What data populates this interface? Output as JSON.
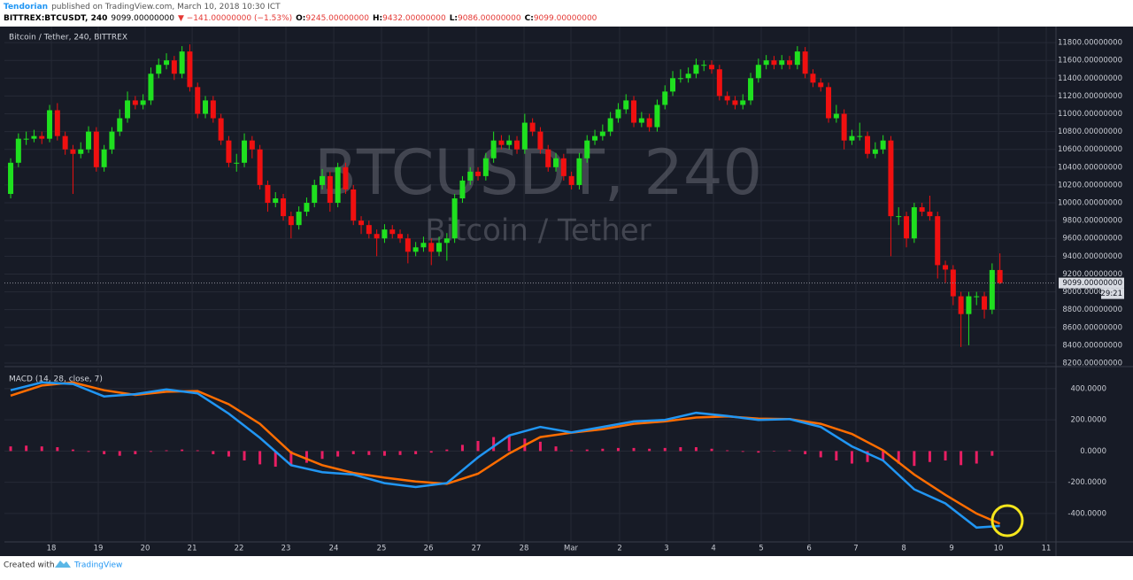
{
  "header": {
    "author": "Tendorian",
    "published": "published on TradingView.com, March 10, 2018 10:30 ICT",
    "symbol": "BITTREX:BTCUSDT, 240",
    "last": "9099.00000000",
    "change": "▼ −141.00000000 (−1.53%)",
    "o_label": "O:",
    "o": "9245.00000000",
    "h_label": "H:",
    "h": "9432.00000000",
    "l_label": "L:",
    "l": "9086.00000000",
    "c_label": "C:",
    "c": "9099.00000000"
  },
  "footer": {
    "created": "Created with",
    "brand": "TradingView"
  },
  "chart_data": [
    {
      "type": "candlestick",
      "title": "Bitcoin / Tether, 240, BITTREX",
      "watermark": "BTCUSDT, 240",
      "watermark_subtitle": "Bitcoin / Tether",
      "up_color": "#1fe01f",
      "down_color": "#f01010",
      "grid": true,
      "last_price_label": "9099.00000000",
      "countdown": "29:21",
      "xlim": [
        -0.8,
        134.2
      ],
      "xticks": [
        {
          "value": 5.23,
          "label": "18"
        },
        {
          "value": 11.25,
          "label": "19"
        },
        {
          "value": 17.27,
          "label": "20"
        },
        {
          "value": 23.3,
          "label": "21"
        },
        {
          "value": 29.32,
          "label": "22"
        },
        {
          "value": 35.34,
          "label": "23"
        },
        {
          "value": 41.48,
          "label": "24"
        },
        {
          "value": 47.61,
          "label": "25"
        },
        {
          "value": 53.64,
          "label": "26"
        },
        {
          "value": 59.77,
          "label": "27"
        },
        {
          "value": 65.91,
          "label": "28"
        },
        {
          "value": 71.93,
          "label": "Mar"
        },
        {
          "value": 78.18,
          "label": "2"
        },
        {
          "value": 84.2,
          "label": "3"
        },
        {
          "value": 90.23,
          "label": "4"
        },
        {
          "value": 96.36,
          "label": "5"
        },
        {
          "value": 102.5,
          "label": "6"
        },
        {
          "value": 108.52,
          "label": "7"
        },
        {
          "value": 114.66,
          "label": "8"
        },
        {
          "value": 120.8,
          "label": "9"
        },
        {
          "value": 126.82,
          "label": "10"
        },
        {
          "value": 132.95,
          "label": "11"
        }
      ],
      "ylim": [
        8180,
        11960
      ],
      "yticks": [
        {
          "value": 8200,
          "label": "8200.00000000"
        },
        {
          "value": 8400,
          "label": "8400.00000000"
        },
        {
          "value": 8600,
          "label": "8600.00000000"
        },
        {
          "value": 8800,
          "label": "8800.00000000"
        },
        {
          "value": 9000,
          "label": "9000.00000000"
        },
        {
          "value": 9200,
          "label": "9200.00000000"
        },
        {
          "value": 9400,
          "label": "9400.00000000"
        },
        {
          "value": 9600,
          "label": "9600.00000000"
        },
        {
          "value": 9800,
          "label": "9800.00000000"
        },
        {
          "value": 10000,
          "label": "10000.00000000"
        },
        {
          "value": 10200,
          "label": "10200.00000000"
        },
        {
          "value": 10400,
          "label": "10400.00000000"
        },
        {
          "value": 10600,
          "label": "10600.00000000"
        },
        {
          "value": 10800,
          "label": "10800.00000000"
        },
        {
          "value": 11000,
          "label": "11000.00000000"
        },
        {
          "value": 11200,
          "label": "11200.00000000"
        },
        {
          "value": 11400,
          "label": "11400.00000000"
        },
        {
          "value": 11600,
          "label": "11600.00000000"
        },
        {
          "value": 11800,
          "label": "11800.00000000"
        }
      ],
      "candles": [
        [
          10100,
          10500,
          10050,
          10450
        ],
        [
          10450,
          10780,
          10400,
          10720
        ],
        [
          10720,
          10800,
          10650,
          10720
        ],
        [
          10720,
          10820,
          10680,
          10750
        ],
        [
          10750,
          10800,
          10660,
          10720
        ],
        [
          10720,
          11100,
          10680,
          11040
        ],
        [
          11040,
          11120,
          10700,
          10750
        ],
        [
          10750,
          10800,
          10540,
          10600
        ],
        [
          10600,
          10650,
          10100,
          10550
        ],
        [
          10550,
          10680,
          10500,
          10600
        ],
        [
          10600,
          10860,
          10560,
          10800
        ],
        [
          10800,
          10850,
          10350,
          10400
        ],
        [
          10400,
          10650,
          10350,
          10600
        ],
        [
          10600,
          10850,
          10550,
          10800
        ],
        [
          10800,
          11050,
          10750,
          10950
        ],
        [
          10950,
          11250,
          10900,
          11150
        ],
        [
          11150,
          11200,
          11050,
          11100
        ],
        [
          11100,
          11220,
          11050,
          11150
        ],
        [
          11150,
          11520,
          11100,
          11450
        ],
        [
          11450,
          11620,
          11400,
          11550
        ],
        [
          11550,
          11680,
          11500,
          11600
        ],
        [
          11600,
          11650,
          11380,
          11450
        ],
        [
          11450,
          11760,
          11400,
          11700
        ],
        [
          11700,
          11780,
          11250,
          11300
        ],
        [
          11300,
          11350,
          10950,
          11000
        ],
        [
          11000,
          11200,
          10950,
          11150
        ],
        [
          11150,
          11200,
          10900,
          10950
        ],
        [
          10950,
          11000,
          10650,
          10700
        ],
        [
          10700,
          10750,
          10400,
          10450
        ],
        [
          10450,
          10550,
          10350,
          10450
        ],
        [
          10450,
          10780,
          10400,
          10700
        ],
        [
          10700,
          10750,
          10500,
          10600
        ],
        [
          10600,
          10650,
          10150,
          10200
        ],
        [
          10200,
          10250,
          9900,
          10000
        ],
        [
          10000,
          10120,
          9950,
          10050
        ],
        [
          10050,
          10100,
          9800,
          9850
        ],
        [
          9850,
          9900,
          9600,
          9750
        ],
        [
          9750,
          9960,
          9700,
          9900
        ],
        [
          9900,
          10060,
          9850,
          10000
        ],
        [
          10000,
          10260,
          9950,
          10200
        ],
        [
          10200,
          10380,
          10150,
          10300
        ],
        [
          10300,
          10350,
          9900,
          10000
        ],
        [
          10000,
          10450,
          9950,
          10400
        ],
        [
          10400,
          10450,
          10100,
          10150
        ],
        [
          10150,
          10200,
          9750,
          9800
        ],
        [
          9800,
          9850,
          9650,
          9750
        ],
        [
          9750,
          9800,
          9600,
          9650
        ],
        [
          9650,
          9700,
          9400,
          9600
        ],
        [
          9600,
          9760,
          9550,
          9700
        ],
        [
          9700,
          9750,
          9600,
          9650
        ],
        [
          9650,
          9700,
          9550,
          9600
        ],
        [
          9600,
          9650,
          9320,
          9450
        ],
        [
          9450,
          9560,
          9400,
          9500
        ],
        [
          9500,
          9620,
          9450,
          9550
        ],
        [
          9550,
          9600,
          9300,
          9450
        ],
        [
          9450,
          9620,
          9400,
          9550
        ],
        [
          9550,
          9660,
          9350,
          9600
        ],
        [
          9600,
          10100,
          9550,
          10050
        ],
        [
          10050,
          10300,
          10000,
          10250
        ],
        [
          10250,
          10400,
          10200,
          10350
        ],
        [
          10350,
          10400,
          10250,
          10300
        ],
        [
          10300,
          10560,
          10250,
          10500
        ],
        [
          10500,
          10800,
          10450,
          10700
        ],
        [
          10700,
          10760,
          10600,
          10650
        ],
        [
          10650,
          10760,
          10600,
          10700
        ],
        [
          10700,
          10750,
          10550,
          10600
        ],
        [
          10600,
          11000,
          10550,
          10900
        ],
        [
          10900,
          10950,
          10750,
          10800
        ],
        [
          10800,
          10850,
          10550,
          10600
        ],
        [
          10600,
          10650,
          10350,
          10400
        ],
        [
          10400,
          10560,
          10350,
          10500
        ],
        [
          10500,
          10550,
          10250,
          10300
        ],
        [
          10300,
          10350,
          10150,
          10200
        ],
        [
          10200,
          10560,
          10150,
          10500
        ],
        [
          10500,
          10760,
          10450,
          10700
        ],
        [
          10700,
          10820,
          10650,
          10750
        ],
        [
          10750,
          10880,
          10700,
          10800
        ],
        [
          10800,
          11020,
          10750,
          10950
        ],
        [
          10950,
          11120,
          10900,
          11050
        ],
        [
          11050,
          11220,
          11000,
          11150
        ],
        [
          11150,
          11200,
          10850,
          10900
        ],
        [
          10900,
          11020,
          10850,
          10950
        ],
        [
          10950,
          11000,
          10800,
          10850
        ],
        [
          10850,
          11160,
          10800,
          11100
        ],
        [
          11100,
          11320,
          11050,
          11250
        ],
        [
          11250,
          11480,
          11200,
          11400
        ],
        [
          11400,
          11500,
          11350,
          11400
        ],
        [
          11400,
          11520,
          11350,
          11450
        ],
        [
          11450,
          11620,
          11400,
          11550
        ],
        [
          11550,
          11600,
          11480,
          11550
        ],
        [
          11550,
          11600,
          11450,
          11500
        ],
        [
          11500,
          11550,
          11150,
          11200
        ],
        [
          11200,
          11250,
          11100,
          11150
        ],
        [
          11150,
          11200,
          11050,
          11100
        ],
        [
          11100,
          11220,
          11050,
          11150
        ],
        [
          11150,
          11460,
          11100,
          11400
        ],
        [
          11400,
          11620,
          11350,
          11550
        ],
        [
          11550,
          11660,
          11500,
          11600
        ],
        [
          11600,
          11650,
          11500,
          11550
        ],
        [
          11550,
          11660,
          11500,
          11600
        ],
        [
          11600,
          11650,
          11500,
          11550
        ],
        [
          11550,
          11760,
          11500,
          11700
        ],
        [
          11700,
          11750,
          11400,
          11450
        ],
        [
          11450,
          11500,
          11300,
          11350
        ],
        [
          11350,
          11400,
          11250,
          11300
        ],
        [
          11300,
          11350,
          10900,
          10950
        ],
        [
          10950,
          11100,
          10900,
          11000
        ],
        [
          11000,
          11050,
          10600,
          10700
        ],
        [
          10700,
          10820,
          10650,
          10750
        ],
        [
          10750,
          10900,
          10700,
          10750
        ],
        [
          10750,
          10800,
          10500,
          10550
        ],
        [
          10550,
          10680,
          10500,
          10600
        ],
        [
          10600,
          10760,
          10550,
          10700
        ],
        [
          10700,
          10750,
          9400,
          9850
        ],
        [
          9850,
          9950,
          9750,
          9850
        ],
        [
          9850,
          9900,
          9500,
          9600
        ],
        [
          9600,
          10000,
          9550,
          9950
        ],
        [
          9950,
          10000,
          9850,
          9900
        ],
        [
          9900,
          10080,
          9800,
          9850
        ],
        [
          9850,
          9900,
          9150,
          9300
        ],
        [
          9300,
          9350,
          9100,
          9250
        ],
        [
          9250,
          9300,
          8850,
          8950
        ],
        [
          8950,
          9000,
          8380,
          8750
        ],
        [
          8750,
          9000,
          8400,
          8950
        ],
        [
          8950,
          9000,
          8850,
          8950
        ],
        [
          8950,
          9000,
          8700,
          8800
        ],
        [
          8800,
          9320,
          8750,
          9245
        ],
        [
          9245,
          9432,
          9086,
          9099
        ]
      ]
    },
    {
      "type": "macd",
      "title": "MACD (14, 28, close, 7)",
      "ylim": [
        -582,
        530
      ],
      "yticks": [
        {
          "value": -400,
          "label": "-400.0000"
        },
        {
          "value": -200,
          "label": "-200.0000"
        },
        {
          "value": 0,
          "label": "0.0000"
        },
        {
          "value": 200,
          "label": "200.0000"
        },
        {
          "value": 400,
          "label": "400.0000"
        }
      ],
      "x": [
        0,
        4,
        8,
        12,
        16,
        20,
        24,
        28,
        32,
        36,
        40,
        44,
        48,
        52,
        56,
        60,
        64,
        68,
        72,
        76,
        80,
        84,
        88,
        92,
        96,
        100,
        104,
        108,
        112,
        116,
        120,
        124,
        127
      ],
      "macd": {
        "color": "#2196f3",
        "values": [
          390,
          440,
          430,
          350,
          365,
          395,
          370,
          240,
          85,
          -90,
          -135,
          -150,
          -205,
          -230,
          -205,
          -40,
          100,
          155,
          120,
          155,
          190,
          200,
          245,
          225,
          200,
          205,
          155,
          30,
          -60,
          -245,
          -335,
          -490,
          -480
        ]
      },
      "signal": {
        "color": "#ff6d00",
        "values": [
          355,
          420,
          440,
          390,
          360,
          380,
          385,
          300,
          175,
          -10,
          -90,
          -140,
          -170,
          -195,
          -210,
          -145,
          -15,
          90,
          118,
          140,
          175,
          190,
          215,
          222,
          208,
          205,
          175,
          110,
          5,
          -150,
          -280,
          -400,
          -465
        ]
      },
      "histogram": {
        "color": "#e91e63",
        "x": [
          0,
          2,
          4,
          6,
          8,
          10,
          12,
          14,
          16,
          18,
          20,
          22,
          24,
          26,
          28,
          30,
          32,
          34,
          36,
          38,
          40,
          42,
          44,
          46,
          48,
          50,
          52,
          54,
          56,
          58,
          60,
          62,
          64,
          66,
          68,
          70,
          72,
          74,
          76,
          78,
          80,
          82,
          84,
          86,
          88,
          90,
          92,
          94,
          96,
          98,
          100,
          102,
          104,
          106,
          108,
          110,
          112,
          114,
          116,
          118,
          120,
          122,
          124,
          126
        ],
        "values": [
          30,
          35,
          30,
          25,
          10,
          -5,
          -20,
          -30,
          -20,
          -5,
          5,
          10,
          5,
          -20,
          -35,
          -60,
          -85,
          -100,
          -90,
          -75,
          -50,
          -35,
          -20,
          -25,
          -30,
          -25,
          -20,
          -10,
          10,
          40,
          65,
          90,
          100,
          80,
          60,
          30,
          5,
          10,
          15,
          20,
          20,
          15,
          20,
          25,
          25,
          15,
          5,
          -5,
          -10,
          0,
          5,
          -20,
          -40,
          -60,
          -80,
          -70,
          -60,
          -80,
          -95,
          -70,
          -60,
          -90,
          -80,
          -30
        ]
      }
    }
  ]
}
